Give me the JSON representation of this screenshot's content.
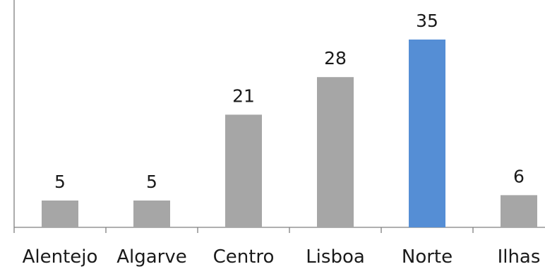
{
  "chart_data": {
    "type": "bar",
    "categories": [
      "Alentejo",
      "Algarve",
      "Centro",
      "Lisboa",
      "Norte",
      "Ilhas"
    ],
    "values": [
      5,
      5,
      21,
      28,
      35,
      6
    ],
    "value_labels": [
      "5",
      "5",
      "21",
      "28",
      "35",
      "6"
    ],
    "title": "",
    "xlabel": "",
    "ylabel": "",
    "ylim": [
      0,
      35
    ],
    "grid": false,
    "legend": "none",
    "bar_colors": [
      "#a6a6a6",
      "#a6a6a6",
      "#a6a6a6",
      "#a6a6a6",
      "#558ed5",
      "#a6a6a6"
    ],
    "axis_color": "#808080"
  }
}
